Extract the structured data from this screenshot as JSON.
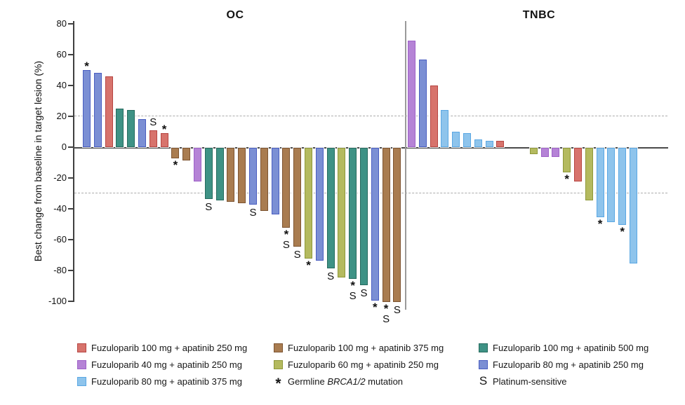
{
  "colors": {
    "red": {
      "fill": "#D7736C",
      "stroke": "#B64542"
    },
    "brown": {
      "fill": "#A97C50",
      "stroke": "#7D5431"
    },
    "teal": {
      "fill": "#3E9285",
      "stroke": "#266B5E"
    },
    "orchid": {
      "fill": "#B583D6",
      "stroke": "#9E61C8"
    },
    "olive": {
      "fill": "#B4BA5F",
      "stroke": "#8E9839"
    },
    "royal": {
      "fill": "#7B8FD4",
      "stroke": "#4A5EC1"
    },
    "sky": {
      "fill": "#8EC4EC",
      "stroke": "#5AA7E3"
    }
  },
  "chart_data": {
    "type": "bar",
    "ylabel": "Best change from baseline in target lesion (%)",
    "ylim": [
      -100,
      80
    ],
    "yticks": [
      80,
      60,
      40,
      20,
      0,
      -20,
      -40,
      -60,
      -80,
      -100
    ],
    "reference_lines": [
      20,
      -30
    ],
    "grid": "off",
    "legend_position": "bottom",
    "groups": {
      "red": "Fuzuloparib 100 mg + apatinib 250 mg",
      "brown": "Fuzuloparib 100 mg + apatinib 375 mg",
      "teal": "Fuzuloparib 100 mg + apatinib 500 mg",
      "orchid": "Fuzuloparib 40 mg + apatinib 250 mg",
      "olive": "Fuzuloparib 60 mg + apatinib 250 mg",
      "royal": "Fuzuloparib 80 mg + apatinib 250 mg",
      "sky": "Fuzuloparib 80 mg + apatinib 375 mg"
    },
    "marker_legend": {
      "asterisk": "Germline BRCA1/2 mutation",
      "S": "Platinum-sensitive"
    },
    "panels": [
      {
        "title": "OC",
        "bars": [
          {
            "value": 50,
            "color": "royal",
            "marker": "*"
          },
          {
            "value": 48,
            "color": "royal",
            "marker": ""
          },
          {
            "value": 46,
            "color": "red",
            "marker": ""
          },
          {
            "value": 25,
            "color": "teal",
            "marker": ""
          },
          {
            "value": 24,
            "color": "teal",
            "marker": ""
          },
          {
            "value": 18,
            "color": "royal",
            "marker": ""
          },
          {
            "value": 11,
            "color": "red",
            "marker": "S"
          },
          {
            "value": 9,
            "color": "red",
            "marker": "*"
          },
          {
            "value": -7,
            "color": "brown",
            "marker": "*"
          },
          {
            "value": -8,
            "color": "brown",
            "marker": ""
          },
          {
            "value": -22,
            "color": "orchid",
            "marker": ""
          },
          {
            "value": -33,
            "color": "teal",
            "marker": "S"
          },
          {
            "value": -34,
            "color": "teal",
            "marker": ""
          },
          {
            "value": -35,
            "color": "brown",
            "marker": ""
          },
          {
            "value": -36,
            "color": "brown",
            "marker": ""
          },
          {
            "value": -37,
            "color": "royal",
            "marker": "S"
          },
          {
            "value": -41,
            "color": "brown",
            "marker": ""
          },
          {
            "value": -43,
            "color": "royal",
            "marker": ""
          },
          {
            "value": -52,
            "color": "brown",
            "marker": "*S"
          },
          {
            "value": -64,
            "color": "brown",
            "marker": "S"
          },
          {
            "value": -72,
            "color": "olive",
            "marker": "*"
          },
          {
            "value": -73,
            "color": "royal",
            "marker": ""
          },
          {
            "value": -78,
            "color": "teal",
            "marker": "S"
          },
          {
            "value": -84,
            "color": "olive",
            "marker": ""
          },
          {
            "value": -85,
            "color": "teal",
            "marker": "*S"
          },
          {
            "value": -89,
            "color": "teal",
            "marker": "S"
          },
          {
            "value": -99,
            "color": "royal",
            "marker": "*"
          },
          {
            "value": -100,
            "color": "brown",
            "marker": "*S"
          },
          {
            "value": -100,
            "color": "brown",
            "marker": "S"
          }
        ]
      },
      {
        "title": "TNBC",
        "bars": [
          {
            "value": 69,
            "color": "orchid",
            "marker": ""
          },
          {
            "value": 57,
            "color": "royal",
            "marker": ""
          },
          {
            "value": 40,
            "color": "red",
            "marker": ""
          },
          {
            "value": 24,
            "color": "sky",
            "marker": ""
          },
          {
            "value": 10,
            "color": "sky",
            "marker": ""
          },
          {
            "value": 9,
            "color": "sky",
            "marker": ""
          },
          {
            "value": 5,
            "color": "sky",
            "marker": ""
          },
          {
            "value": 4,
            "color": "sky",
            "marker": ""
          },
          {
            "value": 4,
            "color": "red",
            "marker": ""
          },
          {
            "value": 0,
            "color": null,
            "marker": ""
          },
          {
            "value": 0,
            "color": null,
            "marker": ""
          },
          {
            "value": -4,
            "color": "olive",
            "marker": ""
          },
          {
            "value": -6,
            "color": "orchid",
            "marker": ""
          },
          {
            "value": -6,
            "color": "orchid",
            "marker": ""
          },
          {
            "value": -16,
            "color": "olive",
            "marker": "*"
          },
          {
            "value": -22,
            "color": "red",
            "marker": ""
          },
          {
            "value": -34,
            "color": "olive",
            "marker": ""
          },
          {
            "value": -45,
            "color": "sky",
            "marker": "*"
          },
          {
            "value": -48,
            "color": "sky",
            "marker": ""
          },
          {
            "value": -50,
            "color": "sky",
            "marker": "*"
          },
          {
            "value": -75,
            "color": "sky",
            "marker": ""
          }
        ]
      }
    ]
  },
  "legend": {
    "asterisk_symbol": "*",
    "brca_prefix": "Germline ",
    "brca_gene": "BRCA1/2",
    "brca_suffix": " mutation",
    "s_symbol": "S",
    "s_label": "Platinum-sensitive"
  }
}
